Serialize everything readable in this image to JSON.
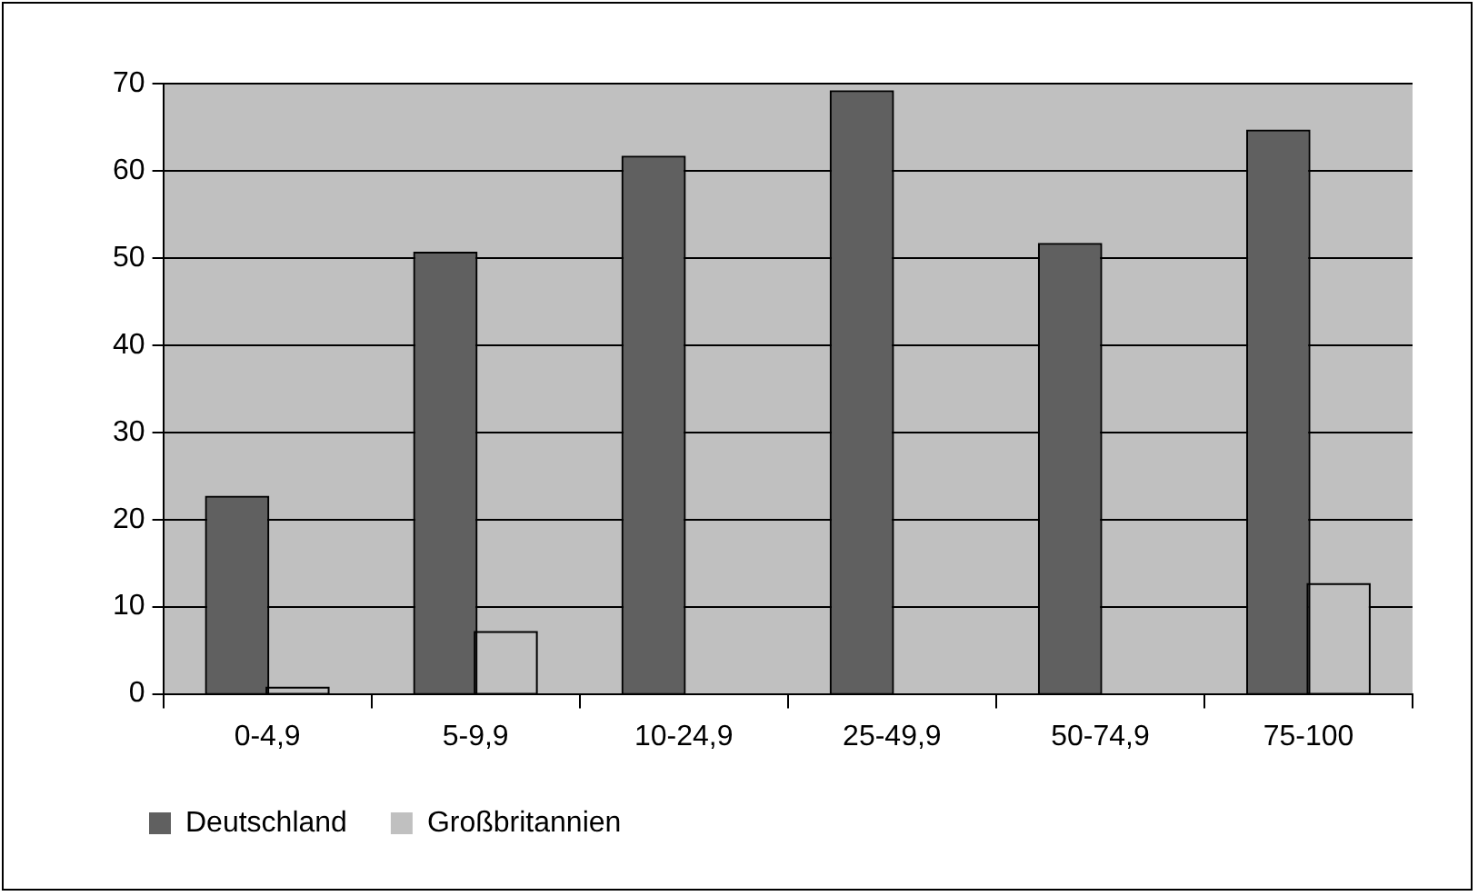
{
  "chart_data": {
    "type": "bar",
    "categories": [
      "0-4,9",
      "5-9,9",
      "10-24,9",
      "25-49,9",
      "50-74,9",
      "75-100"
    ],
    "series": [
      {
        "name": "Deutschland",
        "color": "#606060",
        "values": [
          22.5,
          50.5,
          61.5,
          69,
          51.5,
          64.5
        ]
      },
      {
        "name": "Großbritannien",
        "color": "#c0c0c0",
        "values": [
          0.6,
          7,
          0,
          0,
          0,
          12.5
        ]
      }
    ],
    "ylim": [
      0,
      70
    ],
    "yticks": [
      0,
      10,
      20,
      30,
      40,
      50,
      60,
      70
    ],
    "grid": "y",
    "legend": "bottom left"
  }
}
